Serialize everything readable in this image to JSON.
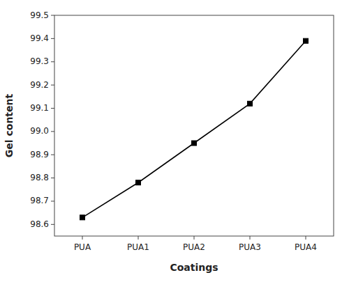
{
  "chart_data": {
    "type": "line",
    "categories": [
      "PUA",
      "PUA1",
      "PUA2",
      "PUA3",
      "PUA4"
    ],
    "values": [
      98.63,
      98.78,
      98.95,
      99.12,
      99.39
    ],
    "xlabel": "Coatings",
    "ylabel": "Gel content",
    "ylim": [
      98.55,
      99.5
    ],
    "yticks": [
      98.6,
      98.7,
      98.8,
      98.9,
      {
        "value": 99.0,
        "label": "99.0"
      },
      99.1,
      99.2,
      99.3,
      99.4,
      99.5
    ],
    "color": "#000000",
    "marker": "square",
    "grid": false
  }
}
